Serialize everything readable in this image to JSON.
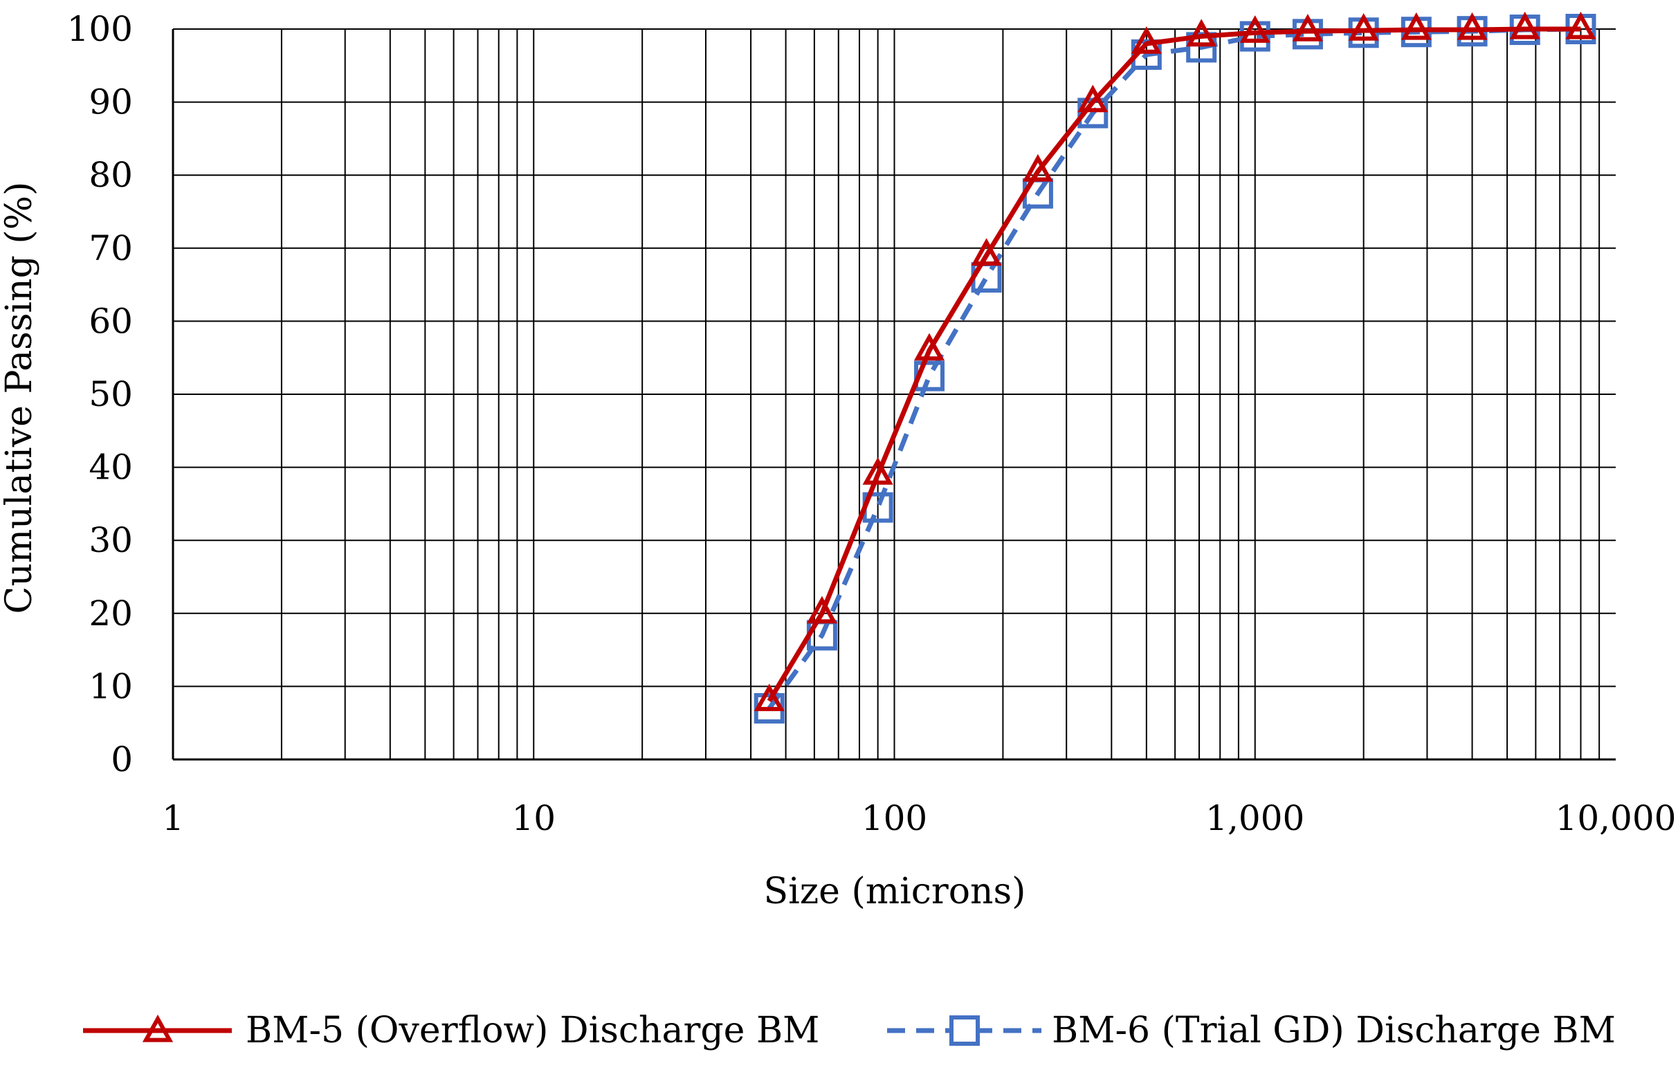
{
  "chart_data": {
    "type": "line",
    "xlabel": "Size (microns)",
    "ylabel": "Cumulative Passing (%)",
    "x_scale": "log",
    "xlim": [
      1,
      10000
    ],
    "ylim": [
      0,
      100
    ],
    "grid": true,
    "legend_position": "bottom",
    "x_tick_labels": [
      "1",
      "10",
      "100",
      "1,000",
      "10,000"
    ],
    "y_tick_labels": [
      "0",
      "10",
      "20",
      "30",
      "40",
      "50",
      "60",
      "70",
      "80",
      "90",
      "100"
    ],
    "series": [
      {
        "name": "BM-5 (Overflow)  Discharge BM",
        "color": "#c00000",
        "line_style": "solid",
        "marker": "triangle",
        "x": [
          45,
          63,
          90,
          125,
          180,
          250,
          355,
          500,
          710,
          1000,
          1400,
          2000,
          2800,
          4000,
          5600,
          8000
        ],
        "y": [
          8,
          20,
          39,
          56,
          69,
          80.5,
          90,
          98,
          99,
          99.5,
          99.7,
          99.8,
          99.9,
          99.9,
          100,
          100
        ]
      },
      {
        "name": "BM-6 (Trial GD) Discharge BM",
        "color": "#4472c4",
        "line_style": "dashed",
        "marker": "square",
        "x": [
          45,
          63,
          90,
          125,
          180,
          250,
          355,
          500,
          710,
          1000,
          1400,
          2000,
          2800,
          4000,
          5600,
          8000
        ],
        "y": [
          7,
          17,
          34.5,
          52.5,
          66,
          77.5,
          88.5,
          96.5,
          97.5,
          99,
          99.3,
          99.5,
          99.6,
          99.7,
          99.9,
          100
        ]
      }
    ]
  }
}
